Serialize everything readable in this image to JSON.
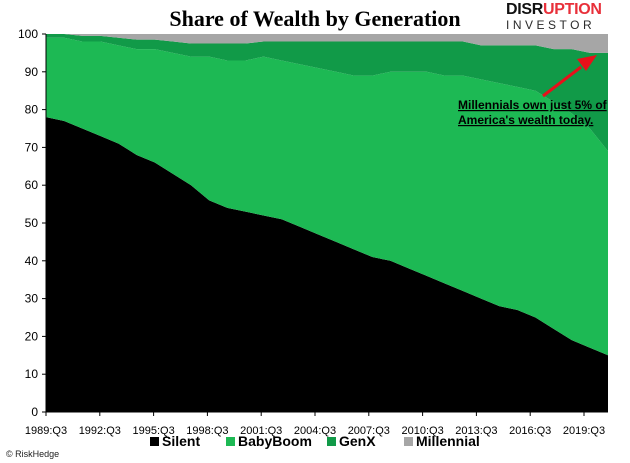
{
  "brand": {
    "line1_a": "DISR",
    "line1_b": "UPTION",
    "line2": "INVESTOR"
  },
  "credit": "© RiskHedge",
  "chart_data": {
    "type": "area",
    "stacked": true,
    "title": "Share of Wealth by Generation",
    "xlabel": "",
    "ylabel": "",
    "ylim": [
      0,
      100
    ],
    "yticks": [
      0,
      10,
      20,
      30,
      40,
      50,
      60,
      70,
      80,
      90,
      100
    ],
    "x_tick_labels": [
      "1989:Q3",
      "1992:Q3",
      "1995:Q3",
      "1998:Q3",
      "2001:Q3",
      "2004:Q3",
      "2007:Q3",
      "2010:Q3",
      "2013:Q3",
      "2016:Q3",
      "2019:Q3"
    ],
    "x": [
      1989.5,
      1990.5,
      1991.5,
      1992.5,
      1993.5,
      1994.5,
      1995.5,
      1996.5,
      1997.5,
      1998.5,
      1999.5,
      2000.5,
      2001.5,
      2002.5,
      2003.5,
      2004.5,
      2005.5,
      2006.5,
      2007.5,
      2008.5,
      2009.5,
      2010.5,
      2011.5,
      2012.5,
      2013.5,
      2014.5,
      2015.5,
      2016.5,
      2017.5,
      2018.5,
      2019.5,
      2020.5
    ],
    "series": [
      {
        "name": "Silent",
        "color": "#000000",
        "values": [
          78,
          77,
          75,
          73,
          71,
          68,
          66,
          63,
          60,
          56,
          54,
          53,
          52,
          51,
          49,
          47,
          45,
          43,
          41,
          40,
          38,
          36,
          34,
          32,
          30,
          28,
          27,
          25,
          22,
          19,
          17,
          15
        ]
      },
      {
        "name": "BabyBoom",
        "color": "#1db954",
        "values": [
          21,
          22,
          23,
          25,
          26,
          28,
          30,
          32,
          34,
          38,
          39,
          40,
          42,
          42,
          43,
          44,
          45,
          46,
          48,
          50,
          52,
          54,
          55,
          57,
          58,
          59,
          59,
          60,
          60,
          60,
          58,
          54
        ]
      },
      {
        "name": "GenX",
        "color": "#119a48",
        "values": [
          1,
          1,
          1.5,
          1.5,
          2,
          2.5,
          2.5,
          3,
          3.5,
          3.5,
          4.5,
          4.5,
          4,
          5,
          6,
          7,
          8,
          9,
          9,
          8,
          8,
          8,
          9,
          9,
          9,
          10,
          11,
          12,
          14,
          17,
          20,
          26
        ]
      },
      {
        "name": "Millennial",
        "color": "#a6a6a6",
        "values": [
          0,
          0,
          0.5,
          0.5,
          1,
          1.5,
          1.5,
          2,
          2.5,
          2.5,
          2.5,
          2.5,
          2,
          2,
          2,
          2,
          2,
          2,
          2,
          2,
          2,
          2,
          2,
          2,
          3,
          3,
          3,
          3,
          4,
          4,
          5,
          5
        ]
      }
    ],
    "legend_position": "bottom",
    "annotation": {
      "text_line1": "Millennials own just 5% of",
      "text_line2": "America's wealth today.",
      "arrow_color": "#e8101a"
    }
  }
}
